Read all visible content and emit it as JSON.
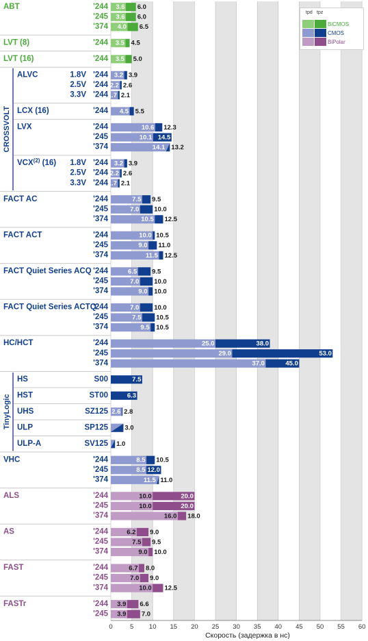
{
  "legend": {
    "header_tpd": "tpd",
    "header_tpz": "tpz",
    "items": [
      {
        "name": "BiCMOS",
        "light": "#8fcf7a",
        "dark": "#4aaa3a",
        "text": "#4aaa3a"
      },
      {
        "name": "CMOS",
        "light": "#8e9ad0",
        "dark": "#113f8f",
        "text": "#113f8f"
      },
      {
        "name": "BiPolar",
        "light": "#c09bc4",
        "dark": "#8f4d8c",
        "text": "#8f4d8c"
      }
    ]
  },
  "chart_data": {
    "type": "bar",
    "title": "",
    "xlabel": "Скорость (задержка в нс)",
    "xlim": [
      0,
      60
    ],
    "xticks": [
      "0",
      "5",
      "10",
      "15",
      "20",
      "25",
      "30",
      "35",
      "40",
      "45",
      "50",
      "55",
      "60"
    ],
    "series_fields": [
      "tpd",
      "tpz"
    ],
    "families": [
      "BiCMOS",
      "CMOS",
      "BiPolar"
    ],
    "groups": [
      {
        "label": "ABT",
        "family": "BiCMOS",
        "rows": [
          {
            "code": "'244",
            "tpd": 3.6,
            "tpz": 6.0,
            "tpd_label": "3.6",
            "tpz_label": "6.0"
          },
          {
            "code": "'245",
            "tpd": 3.6,
            "tpz": 6.0,
            "tpd_label": "3.6",
            "tpz_label": "6.0"
          },
          {
            "code": "'374",
            "tpd": 4.0,
            "tpz": 6.5,
            "tpd_label": "4.0",
            "tpz_label": "6.5"
          }
        ]
      },
      {
        "label": "LVT (8)",
        "family": "BiCMOS",
        "rows": [
          {
            "code": "'244",
            "tpd": 3.5,
            "tpz": 4.5,
            "tpd_label": "3.5",
            "tpz_label": "4.5"
          }
        ]
      },
      {
        "label": "LVT (16)",
        "family": "BiCMOS",
        "rows": [
          {
            "code": "'244",
            "tpd": 3.5,
            "tpz": 5.0,
            "tpd_label": "3.5",
            "tpz_label": "5.0"
          }
        ]
      },
      {
        "label": "ALVC",
        "family": "CMOS",
        "sub": "CROSSVOLT",
        "rows": [
          {
            "volt": "1.8V",
            "code": "'244",
            "tpd": 3.2,
            "tpz": 3.9,
            "tpd_label": "3.2",
            "tpz_label": "3.9"
          },
          {
            "volt": "2.5V",
            "code": "'244",
            "tpd": 2.2,
            "tpz": 2.6,
            "tpd_label": "2.2",
            "tpz_label": "2.6"
          },
          {
            "volt": "3.3V",
            "code": "'244",
            "tpd": 1.7,
            "tpz": 2.1,
            "tpd_label": "1.7",
            "tpz_label": "2.1"
          }
        ]
      },
      {
        "label": "LCX (16)",
        "family": "CMOS",
        "sub": "CROSSVOLT",
        "rows": [
          {
            "code": "'244",
            "tpd": 4.5,
            "tpz": 5.5,
            "tpd_label": "4.5",
            "tpz_label": "5.5"
          }
        ]
      },
      {
        "label": "LVX",
        "family": "CMOS",
        "sub": "CROSSVOLT",
        "rows": [
          {
            "code": "'244",
            "tpd": 10.6,
            "tpz": 12.3,
            "tpd_label": "10.6",
            "tpz_label": "12.3"
          },
          {
            "code": "'245",
            "tpd": 10.1,
            "tpz": 14.5,
            "tpd_label": "10.1",
            "tpz_label": "14.5"
          },
          {
            "code": "'374",
            "tpd": 14.1,
            "tpz": 13.2,
            "tpd_label": "14.1",
            "tpz_label": "13.2"
          }
        ]
      },
      {
        "label": "VCX",
        "label_sup": "(2)",
        "label_suffix": " (16)",
        "family": "CMOS",
        "sub": "CROSSVOLT",
        "rows": [
          {
            "volt": "1.8V",
            "code": "'244",
            "tpd": 3.2,
            "tpz": 3.9,
            "tpd_label": "3.2",
            "tpz_label": "3.9"
          },
          {
            "volt": "2.5V",
            "code": "'244",
            "tpd": 2.2,
            "tpz": 2.6,
            "tpd_label": "2.2",
            "tpz_label": "2.6"
          },
          {
            "volt": "3.3V",
            "code": "'244",
            "tpd": 1.7,
            "tpz": 2.1,
            "tpd_label": "1.7",
            "tpz_label": "2.1"
          }
        ]
      },
      {
        "label": "FACT AC",
        "family": "CMOS",
        "rows": [
          {
            "code": "'244",
            "tpd": 7.5,
            "tpz": 9.5,
            "tpd_label": "7.5",
            "tpz_label": "9.5"
          },
          {
            "code": "'245",
            "tpd": 7.0,
            "tpz": 10.0,
            "tpd_label": "7.0",
            "tpz_label": "10.0"
          },
          {
            "code": "'374",
            "tpd": 10.5,
            "tpz": 12.5,
            "tpd_label": "10.5",
            "tpz_label": "12.5"
          }
        ]
      },
      {
        "label": "FACT ACT",
        "family": "CMOS",
        "rows": [
          {
            "code": "'244",
            "tpd": 10.0,
            "tpz": 10.5,
            "tpd_label": "10.0",
            "tpz_label": "10.5"
          },
          {
            "code": "'245",
            "tpd": 9.0,
            "tpz": 11.0,
            "tpd_label": "9.0",
            "tpz_label": "11.0"
          },
          {
            "code": "'374",
            "tpd": 11.5,
            "tpz": 12.5,
            "tpd_label": "11.5",
            "tpz_label": "12.5"
          }
        ]
      },
      {
        "label": "FACT Quiet Series ACQ",
        "family": "CMOS",
        "rows": [
          {
            "code": "'244",
            "tpd": 6.5,
            "tpz": 9.5,
            "tpd_label": "6.5",
            "tpz_label": "9.5"
          },
          {
            "code": "'245",
            "tpd": 7.0,
            "tpz": 10.0,
            "tpd_label": "7.0",
            "tpz_label": "10.0"
          },
          {
            "code": "'374",
            "tpd": 9.0,
            "tpz": 10.0,
            "tpd_label": "9.0",
            "tpz_label": "10.0"
          }
        ]
      },
      {
        "label": "FACT Quiet Series ACTQ",
        "family": "CMOS",
        "rows": [
          {
            "code": "'244",
            "tpd": 7.0,
            "tpz": 10.0,
            "tpd_label": "7.0",
            "tpz_label": "10.0"
          },
          {
            "code": "'245",
            "tpd": 7.5,
            "tpz": 10.5,
            "tpd_label": "7.5",
            "tpz_label": "10.5"
          },
          {
            "code": "'374",
            "tpd": 9.5,
            "tpz": 10.5,
            "tpd_label": "9.5",
            "tpz_label": "10.5"
          }
        ]
      },
      {
        "label": "HC/HCT",
        "family": "CMOS",
        "rows": [
          {
            "code": "'244",
            "tpd": 25.0,
            "tpz": 38.0,
            "tpd_label": "25.0",
            "tpz_label": "38.0"
          },
          {
            "code": "'245",
            "tpd": 29.0,
            "tpz": 53.0,
            "tpd_label": "29.0",
            "tpz_label": "53.0"
          },
          {
            "code": "'374",
            "tpd": 37.0,
            "tpz": 45.0,
            "tpd_label": "37.0",
            "tpz_label": "45.0"
          }
        ]
      },
      {
        "label": "HS",
        "family": "CMOS",
        "sub": "TinyLogic",
        "rows": [
          {
            "code": "S00",
            "tpd": null,
            "tpz": 7.5,
            "tpd_label": "",
            "tpz_label": "7.5"
          }
        ]
      },
      {
        "label": "HST",
        "family": "CMOS",
        "sub": "TinyLogic",
        "rows": [
          {
            "code": "ST00",
            "tpd": null,
            "tpz": 6.3,
            "tpd_label": "",
            "tpz_label": "6.3"
          }
        ]
      },
      {
        "label": "UHS",
        "family": "CMOS",
        "sub": "TinyLogic",
        "rows": [
          {
            "code": "SZ125",
            "tpd": 2.6,
            "tpz": 2.8,
            "tpd_label": "2.6",
            "tpz_label": "2.8"
          }
        ]
      },
      {
        "label": "ULP",
        "family": "CMOS",
        "sub": "TinyLogic",
        "rows": [
          {
            "code": "SP125",
            "tpd": 3.0,
            "tpz": 3.0,
            "tpd_label": "",
            "tpz_label": "3.0"
          }
        ]
      },
      {
        "label": "ULP-A",
        "family": "CMOS",
        "sub": "TinyLogic",
        "rows": [
          {
            "code": "SV125",
            "tpd": 1.0,
            "tpz": 1.0,
            "tpd_label": "",
            "tpz_label": "1.0"
          }
        ]
      },
      {
        "label": "VHC",
        "family": "CMOS",
        "rows": [
          {
            "code": "'244",
            "tpd": 8.5,
            "tpz": 10.5,
            "tpd_label": "8.5",
            "tpz_label": "10.5"
          },
          {
            "code": "'245",
            "tpd": 8.5,
            "tpz": 12.0,
            "tpd_label": "8.5",
            "tpz_label": "12.0"
          },
          {
            "code": "'374",
            "tpd": 11.5,
            "tpz": 11.0,
            "tpd_label": "11.5",
            "tpz_label": "11.0"
          }
        ]
      },
      {
        "label": "ALS",
        "family": "BiPolar",
        "rows": [
          {
            "code": "'244",
            "tpd": 10.0,
            "tpz": 20.0,
            "tpd_label": "10.0",
            "tpz_label": "20.0"
          },
          {
            "code": "'245",
            "tpd": 10.0,
            "tpz": 20.0,
            "tpd_label": "10.0",
            "tpz_label": "20.0"
          },
          {
            "code": "'374",
            "tpd": 16.0,
            "tpz": 18.0,
            "tpd_label": "16.0",
            "tpz_label": "18.0"
          }
        ]
      },
      {
        "label": "AS",
        "family": "BiPolar",
        "rows": [
          {
            "code": "'244",
            "tpd": 6.2,
            "tpz": 9.0,
            "tpd_label": "6.2",
            "tpz_label": "9.0"
          },
          {
            "code": "'245",
            "tpd": 7.5,
            "tpz": 9.5,
            "tpd_label": "7.5",
            "tpz_label": "9.5"
          },
          {
            "code": "'374",
            "tpd": 9.0,
            "tpz": 10.0,
            "tpd_label": "9.0",
            "tpz_label": "10.0"
          }
        ]
      },
      {
        "label": "FAST",
        "family": "BiPolar",
        "rows": [
          {
            "code": "'244",
            "tpd": 6.7,
            "tpz": 8.0,
            "tpd_label": "6.7",
            "tpz_label": "8.0"
          },
          {
            "code": "'245",
            "tpd": 7.0,
            "tpz": 9.0,
            "tpd_label": "7.0",
            "tpz_label": "9.0"
          },
          {
            "code": "'374",
            "tpd": 10.0,
            "tpz": 12.5,
            "tpd_label": "10.0",
            "tpz_label": "12.5"
          }
        ]
      },
      {
        "label": "FASTr",
        "family": "BiPolar",
        "rows": [
          {
            "code": "'244",
            "tpd": 3.9,
            "tpz": 6.6,
            "tpd_label": "3.9",
            "tpz_label": "6.6"
          },
          {
            "code": "'245",
            "tpd": 3.9,
            "tpz": 7.0,
            "tpd_label": "3.9",
            "tpz_label": "7.0"
          }
        ]
      }
    ]
  }
}
